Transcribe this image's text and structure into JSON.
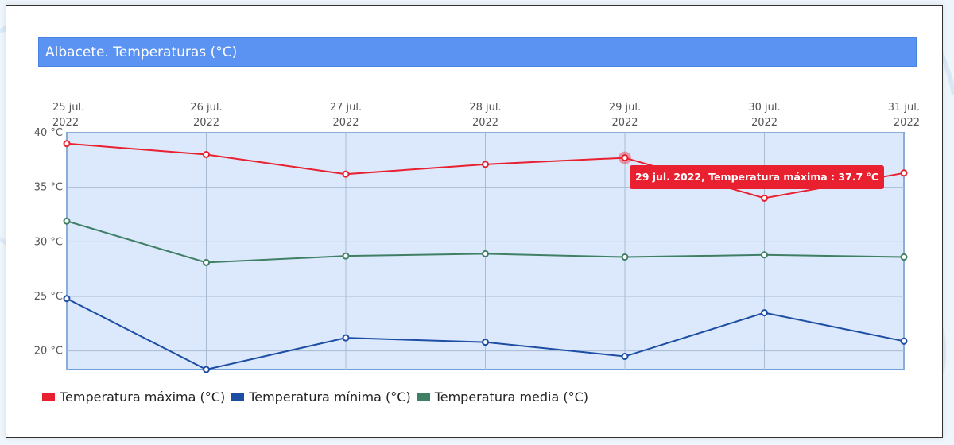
{
  "title": "Albacete. Temperaturas (°C)",
  "colors": {
    "title_bg": "#5a93f2",
    "plot_bg": "#dce9fc",
    "max": "#e8202f",
    "min": "#1d4ea3",
    "media": "#3f7f64"
  },
  "tooltip": {
    "text": "29 jul. 2022, Temperatura máxima : 37.7 °C"
  },
  "chart_data": {
    "type": "line",
    "title": "Albacete. Temperaturas (°C)",
    "x": [
      "25 jul. 2022",
      "26 jul. 2022",
      "27 jul. 2022",
      "28 jul. 2022",
      "29 jul. 2022",
      "30 jul. 2022",
      "31 jul. 2022"
    ],
    "x_tick_labels": [
      [
        "25 jul.",
        "2022"
      ],
      [
        "26 jul.",
        "2022"
      ],
      [
        "27 jul.",
        "2022"
      ],
      [
        "28 jul.",
        "2022"
      ],
      [
        "29 jul.",
        "2022"
      ],
      [
        "30 jul.",
        "2022"
      ],
      [
        "31 jul.",
        "2022"
      ]
    ],
    "y_ticks": [
      40,
      35,
      30,
      25,
      20
    ],
    "y_tick_labels": [
      "40 °C",
      "35 °C",
      "30 °C",
      "25 °C",
      "20 °C"
    ],
    "ylim": [
      18.3,
      40
    ],
    "grid": true,
    "x_axis_position": "top",
    "legend_position": "bottom-left",
    "series": [
      {
        "name": "Temperatura máxima (°C)",
        "color": "#e8202f",
        "values": [
          39.0,
          38.0,
          36.2,
          37.1,
          37.7,
          34.0,
          36.3
        ]
      },
      {
        "name": "Temperatura mínima (°C)",
        "color": "#1d4ea3",
        "values": [
          24.8,
          18.3,
          21.2,
          20.8,
          19.5,
          23.5,
          20.9
        ]
      },
      {
        "name": "Temperatura media (°C)",
        "color": "#3f7f64",
        "values": [
          31.9,
          28.1,
          28.7,
          28.9,
          28.6,
          28.8,
          28.6
        ]
      }
    ],
    "highlight": {
      "series": 0,
      "index": 4
    }
  }
}
